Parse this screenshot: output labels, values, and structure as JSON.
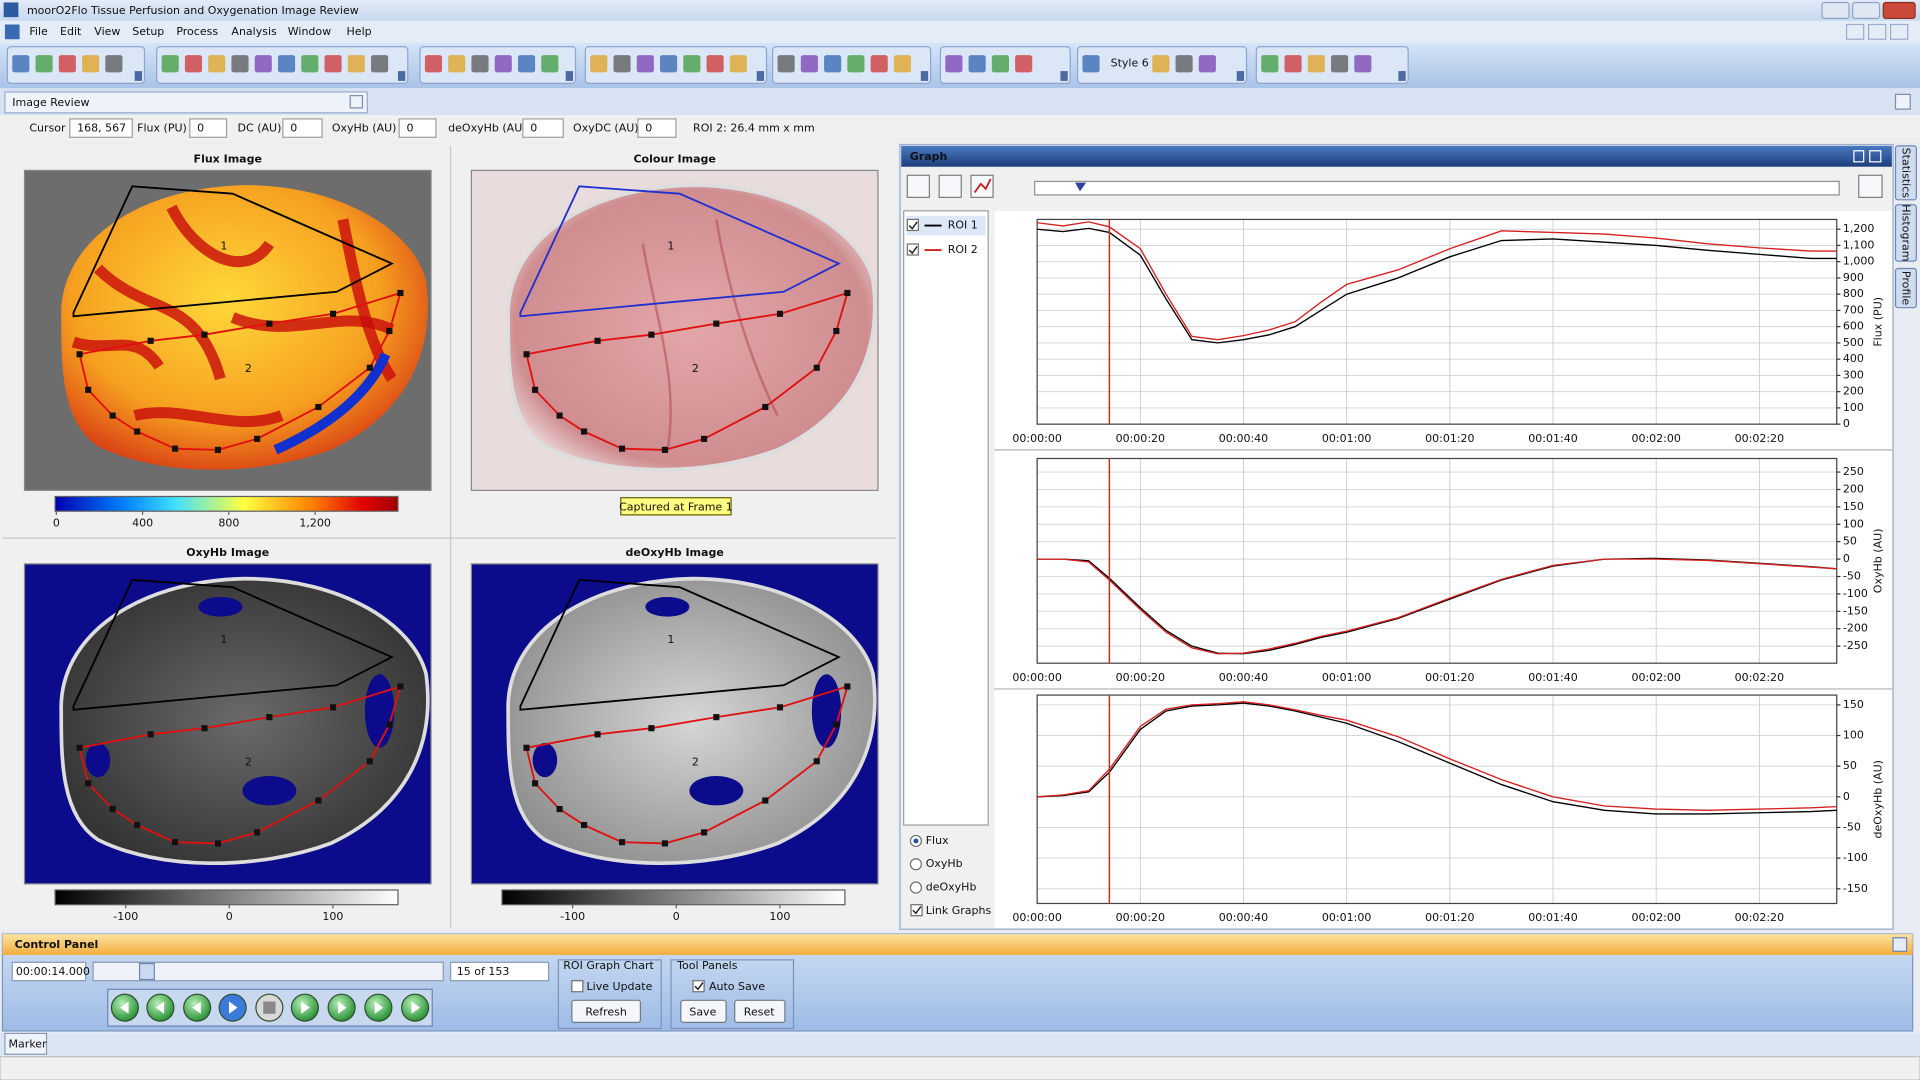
{
  "window": {
    "title": "moorO2Flo Tissue Perfusion and Oxygenation Image Review"
  },
  "menu": [
    "File",
    "Edit",
    "View",
    "Setup",
    "Process",
    "Analysis",
    "Window",
    "Help"
  ],
  "toolbar": {
    "style_label": "Style 6"
  },
  "tab": {
    "title": "Image Review"
  },
  "readout": {
    "fields": [
      {
        "label": "Cursor",
        "value": "168, 567"
      },
      {
        "label": "Flux (PU)",
        "value": 0
      },
      {
        "label": "DC (AU)",
        "value": 0
      },
      {
        "label": "OxyHb (AU)",
        "value": 0
      },
      {
        "label": "deOxyHb (AU)",
        "value": 0
      },
      {
        "label": "OxyDC (AU)",
        "value": 0
      }
    ],
    "roi_info": "ROI 2: 26.4 mm x mm"
  },
  "images": [
    {
      "title": "Flux Image",
      "roi_labels": [
        "1",
        "2"
      ],
      "colorbar": {
        "lim": [
          0,
          1590
        ],
        "ticks": [
          0,
          400,
          800,
          {
            "value": 1200,
            "label": "1,200"
          }
        ]
      }
    },
    {
      "title": "Colour Image",
      "roi_labels": [
        "1",
        "2"
      ],
      "caption": "Captured at Frame 1"
    },
    {
      "title": "OxyHb Image",
      "roi_labels": [
        "1",
        "2"
      ],
      "colorbar": {
        "lim": [
          -167,
          164
        ],
        "ticks": [
          -100,
          0,
          100
        ]
      }
    },
    {
      "title": "deOxyHb Image",
      "roi_labels": [
        "1",
        "2"
      ],
      "colorbar": {
        "lim": [
          -167,
          164
        ],
        "ticks": [
          -100,
          0,
          100
        ]
      }
    }
  ],
  "graph": {
    "title": "Graph",
    "cursor_x": 14,
    "options": [
      "Flux",
      "OxyHb",
      "deOxyHb"
    ],
    "link": "Link Graphs",
    "side_tabs": [
      "Statistics",
      "Histogram",
      "Profile"
    ]
  },
  "chart_data": [
    {
      "type": "line",
      "y_label": "Flux (PU)",
      "x": [
        0,
        5,
        10,
        14,
        20,
        25,
        30,
        35,
        40,
        45,
        50,
        55,
        60,
        70,
        80,
        90,
        100,
        110,
        120,
        130,
        140,
        150,
        155
      ],
      "series": [
        {
          "name": "ROI 1",
          "color": "#000000",
          "values": [
            1200,
            1185,
            1205,
            1180,
            1040,
            770,
            520,
            500,
            520,
            550,
            600,
            700,
            800,
            900,
            1030,
            1130,
            1140,
            1120,
            1100,
            1070,
            1045,
            1020,
            1020
          ]
        },
        {
          "name": "ROI 2",
          "color": "#d42020",
          "values": [
            1240,
            1220,
            1245,
            1215,
            1080,
            800,
            540,
            520,
            545,
            580,
            630,
            750,
            860,
            950,
            1080,
            1190,
            1180,
            1170,
            1145,
            1110,
            1085,
            1065,
            1065
          ]
        }
      ],
      "xlim": [
        0,
        155
      ],
      "ylim": [
        0,
        1260
      ],
      "xticks": [
        {
          "value": 0,
          "label": "00:00:00"
        },
        {
          "value": 20,
          "label": "00:00:20"
        },
        {
          "value": 40,
          "label": "00:00:40"
        },
        {
          "value": 60,
          "label": "00:01:00"
        },
        {
          "value": 80,
          "label": "00:01:20"
        },
        {
          "value": 100,
          "label": "00:01:40"
        },
        {
          "value": 120,
          "label": "00:02:00"
        },
        {
          "value": 140,
          "label": "00:02:20"
        }
      ],
      "yticks": [
        0,
        100,
        200,
        300,
        400,
        500,
        600,
        700,
        800,
        900,
        {
          "value": 1000,
          "label": "1,000"
        },
        {
          "value": 1100,
          "label": "1,100"
        },
        {
          "value": 1200,
          "label": "1,200"
        }
      ],
      "grid": true
    },
    {
      "type": "line",
      "y_label": "OxyHb (AU)",
      "x": [
        0,
        5,
        10,
        14,
        20,
        25,
        30,
        35,
        40,
        45,
        50,
        55,
        60,
        70,
        80,
        90,
        100,
        110,
        120,
        130,
        140,
        150,
        155
      ],
      "series": [
        {
          "name": "ROI 1",
          "color": "#000000",
          "values": [
            0,
            0,
            -5,
            -55,
            -140,
            -205,
            -250,
            -270,
            -272,
            -262,
            -245,
            -225,
            -210,
            -170,
            -115,
            -60,
            -20,
            0,
            2,
            -3,
            -12,
            -22,
            -28
          ]
        },
        {
          "name": "ROI 2",
          "color": "#d42020",
          "values": [
            0,
            0,
            -8,
            -60,
            -145,
            -210,
            -255,
            -272,
            -270,
            -258,
            -242,
            -222,
            -207,
            -168,
            -112,
            -58,
            -18,
            0,
            0,
            -4,
            -13,
            -23,
            -28
          ]
        }
      ],
      "xlim": [
        0,
        155
      ],
      "ylim": [
        -299,
        289
      ],
      "xticks": [
        {
          "value": 0,
          "label": "00:00:00"
        },
        {
          "value": 20,
          "label": "00:00:20"
        },
        {
          "value": 40,
          "label": "00:00:40"
        },
        {
          "value": 60,
          "label": "00:01:00"
        },
        {
          "value": 80,
          "label": "00:01:20"
        },
        {
          "value": 100,
          "label": "00:01:40"
        },
        {
          "value": 120,
          "label": "00:02:00"
        },
        {
          "value": 140,
          "label": "00:02:20"
        }
      ],
      "yticks": [
        -250,
        -200,
        -150,
        -100,
        -50,
        0,
        50,
        100,
        150,
        200,
        250
      ],
      "grid": true
    },
    {
      "type": "line",
      "y_label": "deOxyHb (AU)",
      "x": [
        0,
        5,
        10,
        14,
        20,
        25,
        30,
        35,
        40,
        45,
        50,
        55,
        60,
        70,
        80,
        90,
        100,
        110,
        120,
        130,
        140,
        150,
        155
      ],
      "series": [
        {
          "name": "ROI 1",
          "color": "#000000",
          "values": [
            0,
            2,
            8,
            40,
            110,
            140,
            148,
            150,
            153,
            148,
            140,
            130,
            120,
            90,
            55,
            20,
            -8,
            -22,
            -28,
            -28,
            -26,
            -24,
            -22
          ]
        },
        {
          "name": "ROI 2",
          "color": "#d42020",
          "values": [
            0,
            3,
            10,
            45,
            115,
            143,
            150,
            152,
            155,
            150,
            142,
            133,
            125,
            98,
            62,
            28,
            0,
            -15,
            -20,
            -22,
            -20,
            -18,
            -16
          ]
        }
      ],
      "xlim": [
        0,
        155
      ],
      "ylim": [
        -174,
        166
      ],
      "xticks": [
        {
          "value": 0,
          "label": "00:00:00"
        },
        {
          "value": 20,
          "label": "00:00:20"
        },
        {
          "value": 40,
          "label": "00:00:40"
        },
        {
          "value": 60,
          "label": "00:01:00"
        },
        {
          "value": 80,
          "label": "00:01:20"
        },
        {
          "value": 100,
          "label": "00:01:40"
        },
        {
          "value": 120,
          "label": "00:02:00"
        },
        {
          "value": 140,
          "label": "00:02:20"
        }
      ],
      "yticks": [
        -150,
        -100,
        -50,
        0,
        50,
        100,
        150
      ],
      "grid": true
    }
  ],
  "control_panel": {
    "title": "Control Panel",
    "time": "00:00:14.000",
    "frame": "15 of 153",
    "roi_group": "ROI Graph Chart",
    "live_update": "Live Update",
    "refresh": "Refresh",
    "tools_group": "Tool Panels",
    "auto_save": "Auto Save",
    "save": "Save",
    "reset": "Reset"
  },
  "status": {
    "marker": "Marker"
  }
}
